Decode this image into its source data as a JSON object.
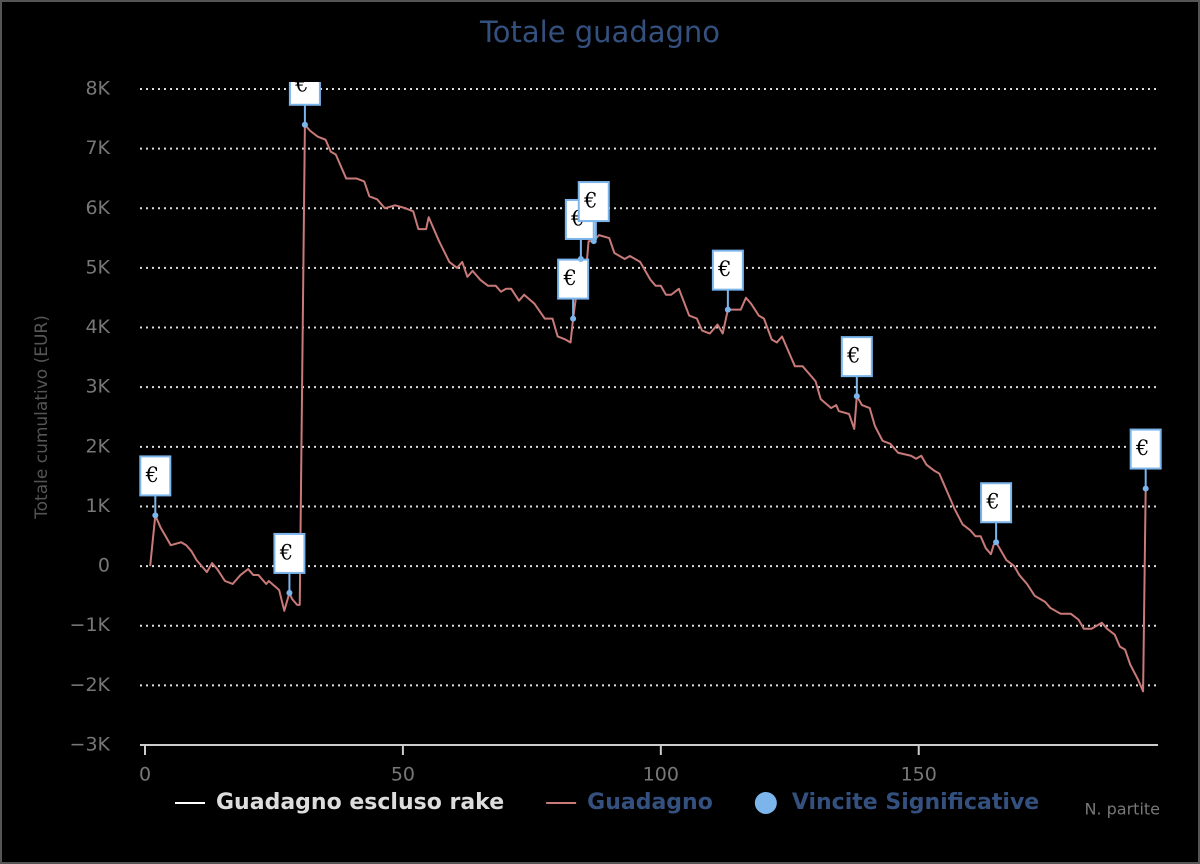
{
  "chart_data": {
    "type": "line",
    "title": "Totale guadagno",
    "y_label": "Totale cumulativo (EUR)",
    "x_label": "N. partite",
    "xlim": [
      0,
      196
    ],
    "xticks": [
      0,
      50,
      100,
      150
    ],
    "ylim": [
      -3000,
      8000
    ],
    "yticks": [
      {
        "value": -3000,
        "label": "−3K"
      },
      {
        "value": -2000,
        "label": "−2K"
      },
      {
        "value": -1000,
        "label": "−1K"
      },
      0,
      {
        "value": 1000,
        "label": "1K"
      },
      {
        "value": 2000,
        "label": "2K"
      },
      {
        "value": 3000,
        "label": "3K"
      },
      {
        "value": 4000,
        "label": "4K"
      },
      {
        "value": 5000,
        "label": "5K"
      },
      {
        "value": 6000,
        "label": "6K"
      },
      {
        "value": 7000,
        "label": "7K"
      },
      {
        "value": 8000,
        "label": "8K"
      }
    ],
    "grid": true,
    "series": [
      {
        "name": "Guadagno escluso rake",
        "color": "#ffffff",
        "visible": false
      },
      {
        "name": "Guadagno",
        "color": "#c87a78",
        "x": [
          1,
          2,
          3,
          4,
          5,
          7,
          8,
          9,
          10,
          12,
          13,
          14,
          15.5,
          17,
          18.5,
          20,
          21,
          22,
          23.5,
          24,
          26,
          27,
          28,
          28.5,
          29.5,
          30,
          31,
          32,
          33.5,
          35,
          36,
          37,
          39,
          41,
          42.5,
          43.5,
          45,
          46.5,
          48.5,
          50.5,
          52,
          53,
          54.5,
          55,
          57,
          59,
          60.5,
          61.5,
          62.5,
          63.5,
          65,
          66.5,
          68,
          69,
          70,
          71,
          72.5,
          73.5,
          75.5,
          77.5,
          79,
          80,
          81.5,
          82.5,
          83,
          84,
          84.5,
          85.5,
          86,
          87,
          88,
          90,
          91,
          93,
          94,
          96,
          98,
          99,
          100,
          101,
          102,
          103.5,
          105.5,
          107,
          108,
          109.5,
          111,
          112,
          113,
          114.5,
          115.5,
          116.5,
          117.5,
          119,
          120,
          121.5,
          122.5,
          123.5,
          125,
          126,
          127.5,
          129,
          130,
          131,
          133,
          134,
          134.5,
          136.5,
          137.5,
          138,
          139,
          140.5,
          141.5,
          143,
          144.5,
          146,
          148.5,
          149.5,
          150.5,
          151.5,
          153,
          154,
          155,
          156,
          157,
          158.5,
          160,
          161,
          162,
          163,
          164,
          164.5,
          165,
          167,
          168.5,
          169.5,
          171,
          172.5,
          174.5,
          175.5,
          176.5,
          177.5,
          179.5,
          181,
          182,
          183.5,
          184.5,
          185.5,
          186.5,
          188,
          189,
          190,
          191,
          192.5,
          193.5,
          194
        ],
        "values": [
          0,
          850,
          650,
          500,
          350,
          400,
          350,
          250,
          100,
          -100,
          50,
          -50,
          -250,
          -300,
          -150,
          -50,
          -150,
          -150,
          -300,
          -250,
          -400,
          -750,
          -450,
          -550,
          -650,
          -650,
          7400,
          7300,
          7200,
          7150,
          6950,
          6900,
          6500,
          6500,
          6450,
          6200,
          6150,
          6000,
          6050,
          6000,
          5950,
          5650,
          5650,
          5850,
          5450,
          5100,
          5000,
          5100,
          4850,
          4950,
          4800,
          4700,
          4700,
          4600,
          4650,
          4650,
          4450,
          4550,
          4400,
          4150,
          4150,
          3850,
          3800,
          3750,
          4150,
          4800,
          5150,
          4950,
          5450,
          5450,
          5550,
          5500,
          5250,
          5150,
          5200,
          5100,
          4800,
          4700,
          4700,
          4550,
          4550,
          4650,
          4200,
          4150,
          3950,
          3900,
          4050,
          3900,
          4300,
          4300,
          4300,
          4500,
          4400,
          4200,
          4150,
          3800,
          3750,
          3850,
          3550,
          3350,
          3350,
          3200,
          3100,
          2800,
          2650,
          2700,
          2600,
          2550,
          2300,
          2850,
          2700,
          2650,
          2350,
          2100,
          2050,
          1900,
          1850,
          1800,
          1850,
          1700,
          1600,
          1550,
          1350,
          1150,
          950,
          700,
          600,
          500,
          500,
          300,
          200,
          350,
          400,
          100,
          0,
          -150,
          -300,
          -500,
          -600,
          -700,
          -750,
          -800,
          -800,
          -900,
          -1050,
          -1050,
          -1000,
          -950,
          -1050,
          -1150,
          -1350,
          -1400,
          -1650,
          -1900,
          -2100,
          1300
        ]
      },
      {
        "name": "Vincite Significative",
        "color": "#7cb5ec",
        "type": "flags",
        "x": [
          2,
          28,
          31,
          83,
          84.5,
          87,
          113,
          138,
          165,
          194
        ],
        "values": [
          850,
          -450,
          7400,
          4150,
          5150,
          5450,
          4300,
          2850,
          400,
          1300
        ],
        "labels": [
          "€",
          "€",
          "€",
          "€",
          "€",
          "€",
          "€",
          "€",
          "€",
          "€"
        ]
      }
    ]
  }
}
